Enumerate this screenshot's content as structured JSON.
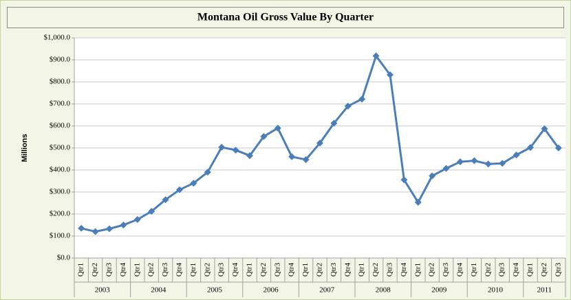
{
  "chart_data": {
    "type": "line",
    "title": "Montana Oil Gross Value By Quarter",
    "y_label": "Millions",
    "categories": [
      "Qtr1",
      "Qtr2",
      "Qtr3",
      "Qtr4",
      "Qtr1",
      "Qtr2",
      "Qtr3",
      "Qtr4",
      "Qtr1",
      "Qtr2",
      "Qtr3",
      "Qtr4",
      "Qtr1",
      "Qtr2",
      "Qtr3",
      "Qtr4",
      "Qtr1",
      "Qtr2",
      "Qtr3",
      "Qtr4",
      "Qtr1",
      "Qtr2",
      "Qtr3",
      "Qtr4",
      "Qtr1",
      "Qtr2",
      "Qtr3",
      "Qtr4",
      "Qtr1",
      "Qtr2",
      "Qtr3",
      "Qtr4",
      "Qtr1",
      "Qtr2",
      "Qtr3"
    ],
    "years": [
      "2003",
      "2004",
      "2005",
      "2006",
      "2007",
      "2008",
      "2009",
      "2010",
      "2011"
    ],
    "values": [
      135,
      120,
      133,
      150,
      175,
      212,
      265,
      310,
      340,
      390,
      503,
      490,
      465,
      552,
      590,
      460,
      447,
      522,
      612,
      690,
      722,
      918,
      832,
      355,
      253,
      373,
      407,
      437,
      442,
      427,
      430,
      468,
      502,
      587,
      500
    ],
    "color": "#4a7ebb",
    "ylim": [
      0,
      1000
    ],
    "yticks": [
      {
        "value": 0,
        "label": "$0.0"
      },
      {
        "value": 100,
        "label": "$100.0"
      },
      {
        "value": 200,
        "label": "$200.0"
      },
      {
        "value": 300,
        "label": "$300.0"
      },
      {
        "value": 400,
        "label": "$400.0"
      },
      {
        "value": 500,
        "label": "$500.0"
      },
      {
        "value": 600,
        "label": "$600.0"
      },
      {
        "value": 700,
        "label": "$700.0"
      },
      {
        "value": 800,
        "label": "$800.0"
      },
      {
        "value": 900,
        "label": "$900.0"
      },
      {
        "value": 1000,
        "label": "$1,000.0"
      }
    ],
    "grid": true
  }
}
